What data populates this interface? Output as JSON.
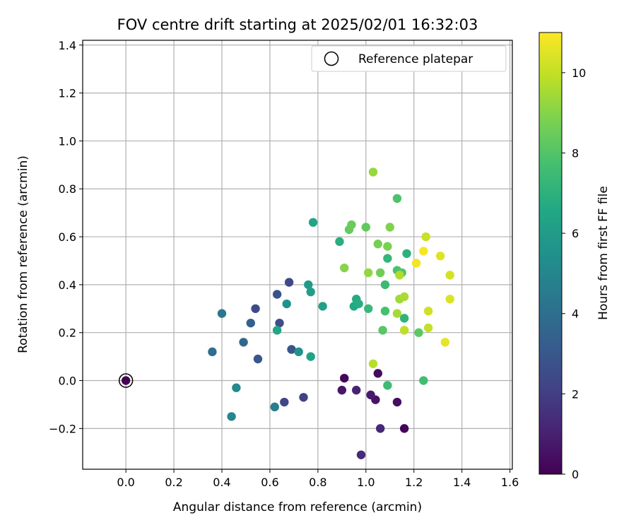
{
  "chart_data": {
    "type": "scatter",
    "title": "FOV centre drift starting at 2025/02/01 16:32:03",
    "xlabel": "Angular distance from reference (arcmin)",
    "ylabel": "Rotation from reference (arcmin)",
    "xlim": [
      -0.18,
      1.61
    ],
    "ylim": [
      -0.37,
      1.42
    ],
    "xticks": [
      0.0,
      0.2,
      0.4,
      0.6,
      0.8,
      1.0,
      1.2,
      1.4,
      1.6
    ],
    "xtick_labels": [
      "0.0",
      "0.2",
      "0.4",
      "0.6",
      "0.8",
      "1.0",
      "1.2",
      "1.4",
      "1.6"
    ],
    "yticks": [
      -0.2,
      0.0,
      0.2,
      0.4,
      0.6,
      0.8,
      1.0,
      1.2,
      1.4
    ],
    "ytick_labels": [
      "−0.2",
      "0.0",
      "0.2",
      "0.4",
      "0.6",
      "0.8",
      "1.0",
      "1.2",
      "1.4"
    ],
    "grid": true,
    "legend": {
      "placement": "top-right",
      "entries": [
        "Reference platepar"
      ]
    },
    "colorbar": {
      "label": "Hours from first FF file",
      "range": [
        0,
        11
      ],
      "ticks": [
        0,
        2,
        4,
        6,
        8,
        10
      ],
      "tick_labels": [
        "0",
        "2",
        "4",
        "6",
        "8",
        "10"
      ],
      "colormap": "viridis"
    },
    "reference_point": {
      "x": 0.0,
      "y": 0.0,
      "hours": 0.0
    },
    "points": [
      [
        0.91,
        0.01,
        0.2
      ],
      [
        1.05,
        0.03,
        0.3
      ],
      [
        1.16,
        -0.2,
        0.1
      ],
      [
        1.13,
        -0.09,
        0.4
      ],
      [
        1.04,
        -0.08,
        0.6
      ],
      [
        1.02,
        -0.06,
        0.8
      ],
      [
        0.9,
        -0.04,
        0.7
      ],
      [
        0.96,
        -0.04,
        1.0
      ],
      [
        1.06,
        -0.2,
        1.2
      ],
      [
        0.98,
        -0.31,
        1.3
      ],
      [
        0.74,
        -0.07,
        2.1
      ],
      [
        0.66,
        -0.09,
        2.3
      ],
      [
        0.68,
        0.41,
        2.4
      ],
      [
        0.54,
        0.3,
        2.5
      ],
      [
        0.64,
        0.24,
        2.6
      ],
      [
        0.63,
        0.36,
        2.8
      ],
      [
        0.69,
        0.13,
        2.9
      ],
      [
        0.55,
        0.09,
        3.0
      ],
      [
        0.52,
        0.24,
        3.4
      ],
      [
        0.49,
        0.16,
        3.7
      ],
      [
        0.36,
        0.12,
        4.0
      ],
      [
        0.4,
        0.28,
        4.3
      ],
      [
        0.62,
        -0.11,
        4.6
      ],
      [
        0.44,
        -0.15,
        5.0
      ],
      [
        0.46,
        -0.03,
        5.2
      ],
      [
        0.67,
        0.32,
        5.5
      ],
      [
        0.72,
        0.12,
        5.6
      ],
      [
        0.76,
        0.4,
        6.0
      ],
      [
        0.77,
        0.37,
        6.1
      ],
      [
        0.82,
        0.31,
        6.2
      ],
      [
        0.77,
        0.1,
        6.3
      ],
      [
        0.78,
        0.66,
        6.4
      ],
      [
        0.63,
        0.21,
        6.5
      ],
      [
        0.95,
        0.31,
        6.6
      ],
      [
        0.96,
        0.34,
        6.7
      ],
      [
        0.97,
        0.32,
        6.8
      ],
      [
        0.89,
        0.58,
        6.9
      ],
      [
        1.17,
        0.53,
        7.0
      ],
      [
        1.16,
        0.26,
        7.1
      ],
      [
        1.09,
        0.51,
        7.2
      ],
      [
        1.01,
        0.3,
        7.3
      ],
      [
        1.08,
        0.4,
        7.4
      ],
      [
        1.09,
        -0.02,
        7.5
      ],
      [
        1.24,
        0.0,
        7.6
      ],
      [
        1.08,
        0.29,
        7.7
      ],
      [
        1.13,
        0.46,
        7.8
      ],
      [
        1.13,
        0.76,
        7.9
      ],
      [
        1.15,
        0.45,
        8.0
      ],
      [
        1.07,
        0.21,
        8.1
      ],
      [
        1.22,
        0.2,
        8.2
      ],
      [
        1.0,
        0.64,
        8.3
      ],
      [
        0.93,
        0.63,
        8.4
      ],
      [
        0.94,
        0.65,
        8.5
      ],
      [
        1.06,
        0.45,
        8.6
      ],
      [
        1.05,
        0.57,
        8.7
      ],
      [
        1.09,
        0.56,
        8.8
      ],
      [
        1.1,
        0.64,
        8.9
      ],
      [
        0.91,
        0.47,
        9.0
      ],
      [
        1.01,
        0.45,
        9.2
      ],
      [
        1.03,
        0.87,
        9.3
      ],
      [
        1.14,
        0.34,
        9.4
      ],
      [
        1.13,
        0.28,
        9.5
      ],
      [
        1.16,
        0.35,
        9.6
      ],
      [
        1.14,
        0.44,
        9.7
      ],
      [
        1.03,
        0.07,
        9.8
      ],
      [
        1.16,
        0.21,
        9.9
      ],
      [
        1.26,
        0.22,
        10.0
      ],
      [
        1.25,
        0.6,
        10.1
      ],
      [
        1.26,
        0.29,
        10.2
      ],
      [
        1.35,
        0.44,
        10.3
      ],
      [
        1.35,
        0.34,
        10.4
      ],
      [
        1.31,
        0.52,
        10.5
      ],
      [
        1.33,
        0.16,
        10.6
      ],
      [
        1.21,
        0.49,
        10.8
      ],
      [
        1.24,
        0.54,
        10.9
      ]
    ]
  }
}
